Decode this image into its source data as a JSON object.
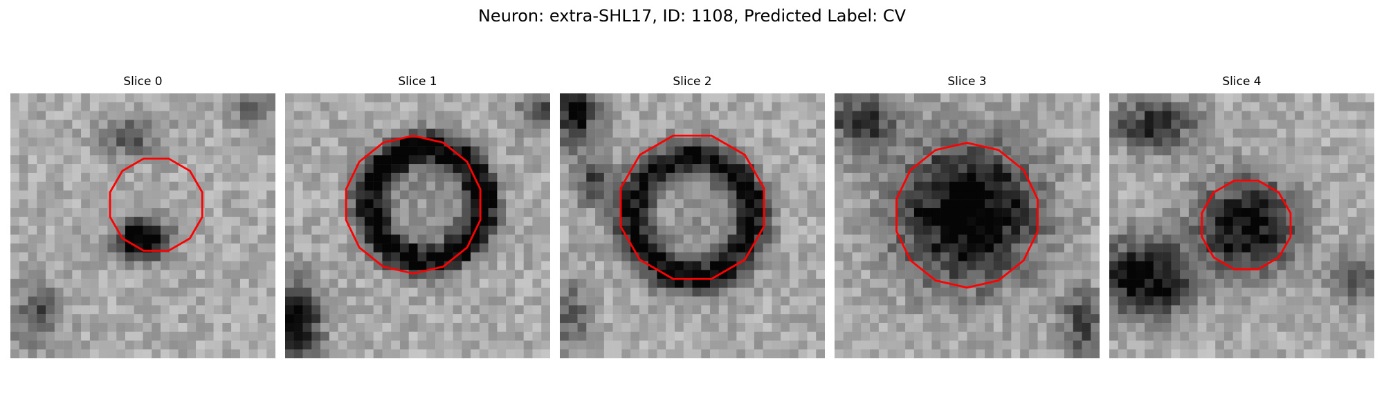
{
  "figure": {
    "suptitle": "Neuron: extra-SHL17, ID: 1108, Predicted Label: CV",
    "contour_color": "#ff0000",
    "colormap": "gray"
  },
  "slices": [
    {
      "title": "Slice 0"
    },
    {
      "title": "Slice 1"
    },
    {
      "title": "Slice 2"
    },
    {
      "title": "Slice 3"
    },
    {
      "title": "Slice 4"
    }
  ]
}
